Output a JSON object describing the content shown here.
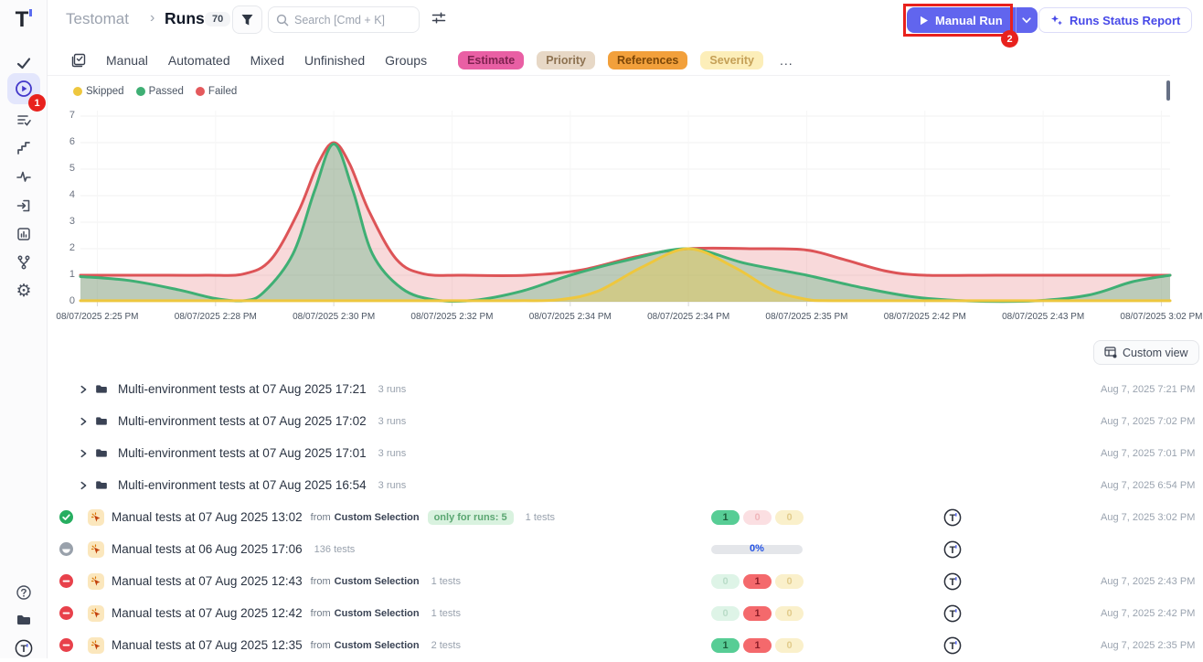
{
  "app": {
    "logo": "T"
  },
  "annotations": {
    "step1": "1",
    "step2": "2"
  },
  "sidebar": {
    "icons": [
      "tests-check-icon",
      "runs-play-icon",
      "test-plans-icon",
      "steps-icon",
      "pulse-icon",
      "import-icon",
      "analytics-icon",
      "branches-icon",
      "settings-gear-icon"
    ],
    "bottom_icons": [
      "help-icon",
      "docs-folder-icon",
      "profile-logo-icon"
    ],
    "active_item": "runs-play-icon",
    "settings_glyph": "⚙"
  },
  "header": {
    "breadcrumb": {
      "root": "Testomat",
      "separator": "›",
      "current": "Runs",
      "count": "70"
    },
    "search": {
      "placeholder": "Search [Cmd + K]"
    },
    "manual_run": {
      "label": "Manual Run"
    },
    "runs_status_report": {
      "label": "Runs Status Report"
    }
  },
  "tabs": {
    "plain": [
      "Manual",
      "Automated",
      "Mixed",
      "Unfinished",
      "Groups"
    ],
    "badges": [
      {
        "label": "Estimate",
        "bg": "#e95fa4",
        "fg": "#7e2250"
      },
      {
        "label": "Priority",
        "bg": "#e7d8c6",
        "fg": "#8d7251"
      },
      {
        "label": "References",
        "bg": "#f2a03b",
        "fg": "#7c4708"
      },
      {
        "label": "Severity",
        "bg": "#fceeb9",
        "fg": "#c5a057"
      }
    ],
    "more": "..."
  },
  "legend": {
    "items": [
      {
        "label": "Skipped",
        "color": "#eec73e"
      },
      {
        "label": "Passed",
        "color": "#3faf74"
      },
      {
        "label": "Failed",
        "color": "#e4595c"
      }
    ]
  },
  "chart_data": {
    "type": "area",
    "title": "",
    "xlabel": "",
    "ylabel": "",
    "ylim": [
      0,
      7
    ],
    "yticks": [
      0,
      1,
      2,
      3,
      4,
      5,
      6,
      7
    ],
    "grid": true,
    "legend_position": "top-left",
    "xtick_labels": [
      "08/07/2025 2:25 PM",
      "08/07/2025 2:28 PM",
      "08/07/2025 2:30 PM",
      "08/07/2025 2:32 PM",
      "08/07/2025 2:34 PM",
      "08/07/2025 2:34 PM",
      "08/07/2025 2:35 PM",
      "08/07/2025 2:42 PM",
      "08/07/2025 2:43 PM",
      "08/07/2025 3:02 PM"
    ],
    "xtick_pos": [
      0.0155,
      0.124,
      0.2325,
      0.341,
      0.4495,
      0.558,
      0.6665,
      0.775,
      0.8835,
      0.992
    ],
    "series": [
      {
        "name": "Failed",
        "color": "#dd5457",
        "fill": "rgba(221,84,87,0.22)",
        "points": [
          [
            0,
            1
          ],
          [
            0.06,
            1
          ],
          [
            0.115,
            1
          ],
          [
            0.15,
            1.05
          ],
          [
            0.175,
            1.6
          ],
          [
            0.2,
            3.4
          ],
          [
            0.218,
            5.2
          ],
          [
            0.2325,
            6
          ],
          [
            0.247,
            5.2
          ],
          [
            0.265,
            3.4
          ],
          [
            0.29,
            1.6
          ],
          [
            0.315,
            1.05
          ],
          [
            0.35,
            1
          ],
          [
            0.41,
            1
          ],
          [
            0.46,
            1.2
          ],
          [
            0.51,
            1.7
          ],
          [
            0.558,
            2
          ],
          [
            0.62,
            2
          ],
          [
            0.6665,
            1.95
          ],
          [
            0.7,
            1.6
          ],
          [
            0.74,
            1.15
          ],
          [
            0.775,
            1
          ],
          [
            0.84,
            1
          ],
          [
            0.92,
            1
          ],
          [
            1,
            1
          ]
        ]
      },
      {
        "name": "Passed",
        "color": "#3faf74",
        "fill": "rgba(63,175,116,0.32)",
        "points": [
          [
            0,
            0.95
          ],
          [
            0.045,
            0.8
          ],
          [
            0.09,
            0.45
          ],
          [
            0.124,
            0.12
          ],
          [
            0.15,
            0.04
          ],
          [
            0.168,
            0.35
          ],
          [
            0.195,
            1.8
          ],
          [
            0.215,
            4.2
          ],
          [
            0.2325,
            5.95
          ],
          [
            0.25,
            4.2
          ],
          [
            0.268,
            1.8
          ],
          [
            0.295,
            0.5
          ],
          [
            0.325,
            0.07
          ],
          [
            0.36,
            0.05
          ],
          [
            0.405,
            0.4
          ],
          [
            0.4495,
            1
          ],
          [
            0.5,
            1.55
          ],
          [
            0.558,
            2
          ],
          [
            0.61,
            1.45
          ],
          [
            0.6665,
            1
          ],
          [
            0.715,
            0.55
          ],
          [
            0.765,
            0.18
          ],
          [
            0.815,
            0.03
          ],
          [
            0.87,
            0.02
          ],
          [
            0.925,
            0.25
          ],
          [
            0.965,
            0.75
          ],
          [
            1,
            1
          ]
        ]
      },
      {
        "name": "Skipped",
        "color": "#eec73e",
        "fill": "rgba(238,199,62,0.38)",
        "points": [
          [
            0,
            0.04
          ],
          [
            0.08,
            0.04
          ],
          [
            0.16,
            0.04
          ],
          [
            0.24,
            0.04
          ],
          [
            0.32,
            0.04
          ],
          [
            0.4,
            0.04
          ],
          [
            0.44,
            0.08
          ],
          [
            0.475,
            0.4
          ],
          [
            0.515,
            1.3
          ],
          [
            0.558,
            2
          ],
          [
            0.6,
            1.3
          ],
          [
            0.635,
            0.45
          ],
          [
            0.665,
            0.1
          ],
          [
            0.69,
            0.04
          ],
          [
            0.78,
            0.04
          ],
          [
            0.88,
            0.04
          ],
          [
            1,
            0.04
          ]
        ]
      }
    ]
  },
  "toolbar": {
    "custom_view_label": "Custom view"
  },
  "runs": {
    "folders": [
      {
        "name": "Multi-environment tests at 07 Aug 2025 17:21",
        "count": "3 runs",
        "date": "Aug 7, 2025 7:21 PM"
      },
      {
        "name": "Multi-environment tests at 07 Aug 2025 17:02",
        "count": "3 runs",
        "date": "Aug 7, 2025 7:02 PM"
      },
      {
        "name": "Multi-environment tests at 07 Aug 2025 17:01",
        "count": "3 runs",
        "date": "Aug 7, 2025 7:01 PM"
      },
      {
        "name": "Multi-environment tests at 07 Aug 2025 16:54",
        "count": "3 runs",
        "date": "Aug 7, 2025 6:54 PM"
      }
    ],
    "items": [
      {
        "status": "passed",
        "title": "Manual tests at 07 Aug 2025 13:02",
        "from_label": "from",
        "source": "Custom Selection",
        "runs_pill": "only for runs: 5",
        "tests": "1 tests",
        "counts": {
          "passed": "1",
          "failed": "0",
          "skipped": "0"
        },
        "date": "Aug 7, 2025 3:02 PM"
      },
      {
        "status": "in-progress",
        "title": "Manual tests at 06 Aug 2025 17:06",
        "tests": "136 tests",
        "progress": "0%",
        "date": ""
      },
      {
        "status": "failed",
        "title": "Manual tests at 07 Aug 2025 12:43",
        "from_label": "from",
        "source": "Custom Selection",
        "tests": "1 tests",
        "counts": {
          "passed": "0",
          "failed": "1",
          "skipped": "0"
        },
        "date": "Aug 7, 2025 2:43 PM"
      },
      {
        "status": "failed",
        "title": "Manual tests at 07 Aug 2025 12:42",
        "from_label": "from",
        "source": "Custom Selection",
        "tests": "1 tests",
        "counts": {
          "passed": "0",
          "failed": "1",
          "skipped": "0"
        },
        "date": "Aug 7, 2025 2:42 PM"
      },
      {
        "status": "failed",
        "title": "Manual tests at 07 Aug 2025 12:35",
        "from_label": "from",
        "source": "Custom Selection",
        "tests": "2 tests",
        "counts": {
          "passed": "1",
          "failed": "1",
          "skipped": "0"
        },
        "date": "Aug 7, 2025 2:35 PM"
      }
    ]
  }
}
